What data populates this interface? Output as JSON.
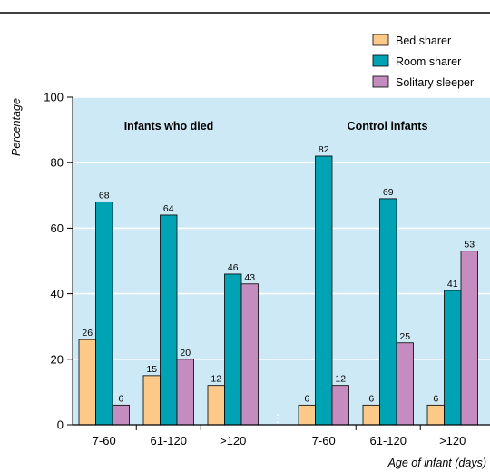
{
  "chart_data": {
    "type": "bar",
    "ylabel": "Percentage",
    "xlabel": "Age of infant (days)",
    "ylim": [
      0,
      100
    ],
    "yticks": [
      0,
      20,
      40,
      60,
      80,
      100
    ],
    "legend_position": "top-right",
    "colors": {
      "plot_background": "#cde9f6",
      "bed": "#fcc989",
      "room": "#00a3b3",
      "solitary": "#c58cc0"
    },
    "groups": [
      {
        "title": "Infants who died",
        "categories": [
          "7-60",
          "61-120",
          ">120"
        ],
        "series": [
          {
            "name": "Bed sharer",
            "values": [
              26,
              15,
              12
            ]
          },
          {
            "name": "Room sharer",
            "values": [
              68,
              64,
              46
            ]
          },
          {
            "name": "Solitary sleeper",
            "values": [
              6,
              20,
              43
            ]
          }
        ]
      },
      {
        "title": "Control infants",
        "categories": [
          "7-60",
          "61-120",
          ">120"
        ],
        "series": [
          {
            "name": "Bed sharer",
            "values": [
              6,
              6,
              6
            ]
          },
          {
            "name": "Room sharer",
            "values": [
              82,
              69,
              41
            ]
          },
          {
            "name": "Solitary sleeper",
            "values": [
              12,
              25,
              53
            ]
          }
        ]
      }
    ]
  }
}
